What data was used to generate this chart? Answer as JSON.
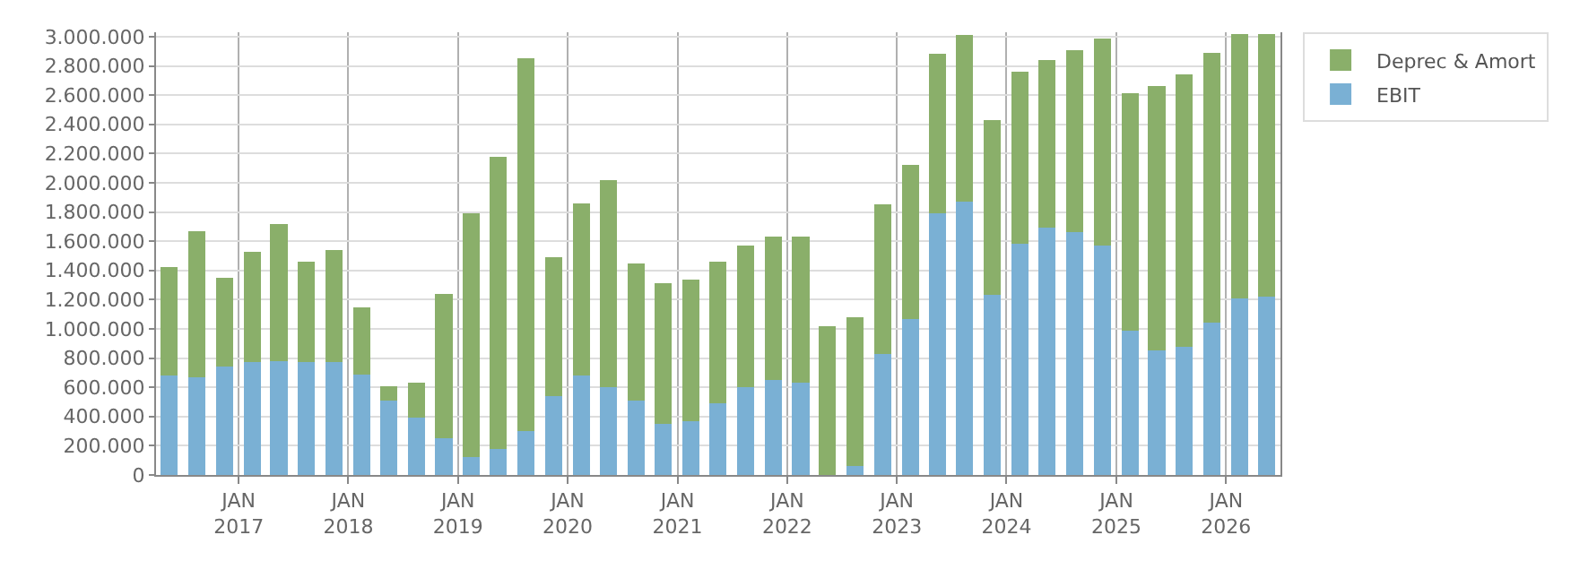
{
  "chart_data": {
    "type": "bar",
    "stacked": true,
    "x": [
      "2016-05-15",
      "2016-08-15",
      "2016-11-15",
      "2017-02-15",
      "2017-05-15",
      "2017-08-15",
      "2017-11-15",
      "2018-02-15",
      "2018-05-15",
      "2018-08-15",
      "2018-11-15",
      "2019-02-15",
      "2019-05-15",
      "2019-08-15",
      "2019-11-15",
      "2020-02-15",
      "2020-05-15",
      "2020-08-15",
      "2020-11-15",
      "2021-02-15",
      "2021-05-15",
      "2021-08-15",
      "2021-11-15",
      "2022-02-15",
      "2022-05-15",
      "2022-08-15",
      "2022-11-15",
      "2023-02-15",
      "2023-05-15",
      "2023-08-15",
      "2023-11-15",
      "2024-02-15",
      "2024-05-15",
      "2024-08-15",
      "2024-11-15",
      "2025-02-15",
      "2025-05-15",
      "2025-08-15",
      "2025-11-15",
      "2026-02-15",
      "2026-05-15"
    ],
    "series": [
      {
        "name": "EBIT",
        "color": "#7ab0d4",
        "values": [
          680000,
          670000,
          740000,
          770000,
          780000,
          770000,
          770000,
          690000,
          510000,
          390000,
          250000,
          120000,
          180000,
          300000,
          540000,
          680000,
          600000,
          510000,
          350000,
          370000,
          490000,
          600000,
          650000,
          630000,
          0,
          60000,
          830000,
          1070000,
          1790000,
          1870000,
          1230000,
          1580000,
          1690000,
          1660000,
          1570000,
          990000,
          850000,
          880000,
          1040000,
          1210000,
          1220000
        ]
      },
      {
        "name": "Deprec & Amort",
        "color": "#8aaf6a",
        "values": [
          740000,
          1000000,
          610000,
          760000,
          940000,
          690000,
          770000,
          460000,
          100000,
          240000,
          990000,
          1670000,
          2000000,
          2550000,
          950000,
          1180000,
          1420000,
          940000,
          960000,
          970000,
          970000,
          970000,
          980000,
          1000000,
          1020000,
          1020000,
          1020000,
          1050000,
          1090000,
          1140000,
          1200000,
          1180000,
          1150000,
          1250000,
          1420000,
          1620000,
          1810000,
          1860000,
          1850000,
          1810000,
          1800000
        ]
      }
    ],
    "xlim": [
      "2016-04-01",
      "2026-07-01"
    ],
    "xticks": [
      {
        "value": "2017-01-01",
        "label": "JAN\n2017"
      },
      {
        "value": "2018-01-01",
        "label": "JAN\n2018"
      },
      {
        "value": "2019-01-01",
        "label": "JAN\n2019"
      },
      {
        "value": "2020-01-01",
        "label": "JAN\n2020"
      },
      {
        "value": "2021-01-01",
        "label": "JAN\n2021"
      },
      {
        "value": "2022-01-01",
        "label": "JAN\n2022"
      },
      {
        "value": "2023-01-01",
        "label": "JAN\n2023"
      },
      {
        "value": "2024-01-01",
        "label": "JAN\n2024"
      },
      {
        "value": "2025-01-01",
        "label": "JAN\n2025"
      },
      {
        "value": "2026-01-01",
        "label": "JAN\n2026"
      }
    ],
    "ylim": [
      0,
      3030000
    ],
    "yticks": [
      {
        "value": 0,
        "label": "0"
      },
      {
        "value": 200000,
        "label": "200.000"
      },
      {
        "value": 400000,
        "label": "400.000"
      },
      {
        "value": 600000,
        "label": "600.000"
      },
      {
        "value": 800000,
        "label": "800.000"
      },
      {
        "value": 1000000,
        "label": "1.000.000"
      },
      {
        "value": 1200000,
        "label": "1.200.000"
      },
      {
        "value": 1400000,
        "label": "1.400.000"
      },
      {
        "value": 1600000,
        "label": "1.600.000"
      },
      {
        "value": 1800000,
        "label": "1.800.000"
      },
      {
        "value": 2000000,
        "label": "2.000.000"
      },
      {
        "value": 2200000,
        "label": "2.200.000"
      },
      {
        "value": 2400000,
        "label": "2.400.000"
      },
      {
        "value": 2600000,
        "label": "2.600.000"
      },
      {
        "value": 2800000,
        "label": "2.800.000"
      },
      {
        "value": 3000000,
        "label": "3.000.000"
      }
    ],
    "grid": true,
    "legend": "top right"
  }
}
